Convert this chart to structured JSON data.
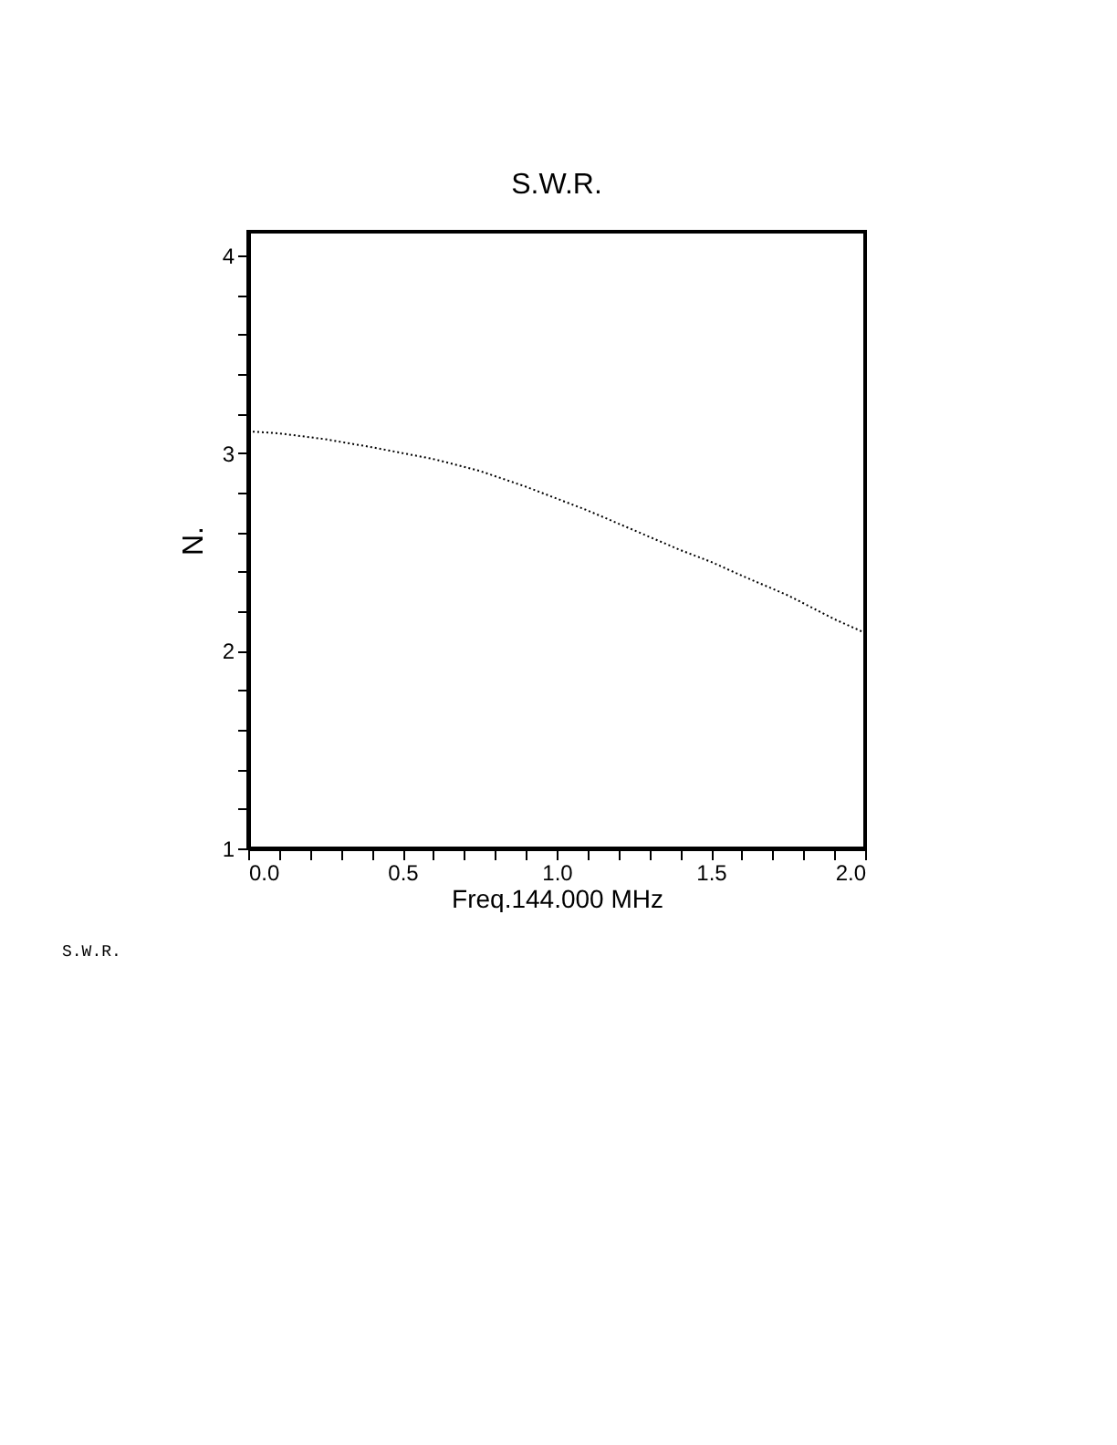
{
  "chart_data": {
    "type": "line",
    "title": "S.W.R.",
    "xlabel": "Freq.144.000 MHz",
    "ylabel": "N.",
    "annotations": [
      "S.W.R."
    ],
    "x": [
      0,
      0.1,
      0.25,
      0.4,
      0.5,
      0.6,
      0.75,
      0.9,
      1.0,
      1.1,
      1.25,
      1.4,
      1.5,
      1.6,
      1.75,
      1.9,
      2.0
    ],
    "series": [
      {
        "color": "#000000",
        "values": [
          3.11,
          3.1,
          3.07,
          3.03,
          3.0,
          2.97,
          2.91,
          2.83,
          2.77,
          2.71,
          2.61,
          2.51,
          2.45,
          2.38,
          2.28,
          2.16,
          2.09
        ]
      }
    ],
    "xlim": [
      0,
      2
    ],
    "ylim": [
      1,
      4.12
    ],
    "xticks": [
      {
        "value": 0,
        "label": "0.0"
      },
      {
        "value": 0.1,
        "label": null
      },
      {
        "value": 0.2,
        "label": null
      },
      {
        "value": 0.3,
        "label": null
      },
      {
        "value": 0.4,
        "label": null
      },
      {
        "value": 0.5,
        "label": "0.5"
      },
      {
        "value": 0.6,
        "label": null
      },
      {
        "value": 0.7,
        "label": null
      },
      {
        "value": 0.8,
        "label": null
      },
      {
        "value": 0.9,
        "label": null
      },
      {
        "value": 1,
        "label": "1.0"
      },
      {
        "value": 1.1,
        "label": null
      },
      {
        "value": 1.2,
        "label": null
      },
      {
        "value": 1.3,
        "label": null
      },
      {
        "value": 1.4,
        "label": null
      },
      {
        "value": 1.5,
        "label": "1.5"
      },
      {
        "value": 1.6,
        "label": null
      },
      {
        "value": 1.7,
        "label": null
      },
      {
        "value": 1.8,
        "label": null
      },
      {
        "value": 1.9,
        "label": null
      },
      {
        "value": 2,
        "label": "2.0"
      }
    ],
    "yticks": [
      1,
      {
        "value": 1.2,
        "label": null
      },
      {
        "value": 1.4,
        "label": null
      },
      {
        "value": 1.6,
        "label": null
      },
      {
        "value": 1.8,
        "label": null
      },
      2,
      {
        "value": 2.2,
        "label": null
      },
      {
        "value": 2.4,
        "label": null
      },
      {
        "value": 2.6,
        "label": null
      },
      {
        "value": 2.8,
        "label": null
      },
      3,
      {
        "value": 3.2,
        "label": null
      },
      {
        "value": 3.4,
        "label": null
      },
      {
        "value": 3.6,
        "label": null
      },
      {
        "value": 3.8,
        "label": null
      },
      4
    ],
    "grid": false,
    "marker": "none",
    "line_style": "dotted"
  }
}
